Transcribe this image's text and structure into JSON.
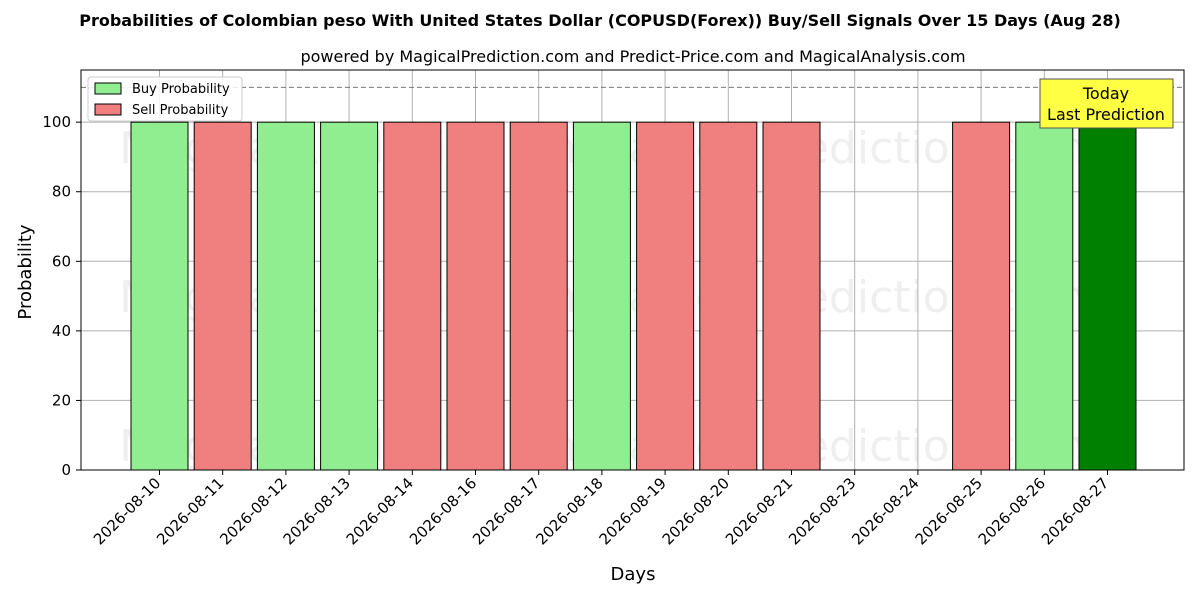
{
  "title": "Probabilities of Colombian peso With United States Dollar (COPUSD(Forex)) Buy/Sell Signals Over 15 Days (Aug 28)",
  "subtitle": "powered by MagicalPrediction.com and Predict-Price.com and MagicalAnalysis.com",
  "watermarks": [
    "MagicalAnalysis.com",
    "MagicalPrediction.com"
  ],
  "today_box": {
    "line1": "Today",
    "line2": "Last Prediction"
  },
  "colors": {
    "buy": "#90ee90",
    "sell": "#f08080",
    "today": "#008000",
    "today_box": "#ffff44"
  },
  "chart_data": {
    "type": "bar",
    "xlabel": "Days",
    "ylabel": "Probability",
    "ylim": [
      0,
      115
    ],
    "yticks": [
      0,
      20,
      40,
      60,
      80,
      100
    ],
    "reference_line": 110,
    "grid": true,
    "legend_placement": "top-left",
    "categories": [
      "2026-08-10",
      "2026-08-11",
      "2026-08-12",
      "2026-08-13",
      "2026-08-14",
      "2026-08-16",
      "2026-08-17",
      "2026-08-18",
      "2026-08-19",
      "2026-08-20",
      "2026-08-21",
      "2026-08-23",
      "2026-08-24",
      "2026-08-25",
      "2026-08-26",
      "2026-08-27"
    ],
    "series": [
      {
        "name": "Buy Probability",
        "values": [
          100,
          null,
          100,
          100,
          null,
          null,
          null,
          100,
          null,
          null,
          null,
          null,
          null,
          null,
          100,
          100
        ]
      },
      {
        "name": "Sell Probability",
        "values": [
          null,
          100,
          null,
          null,
          100,
          100,
          100,
          null,
          100,
          100,
          100,
          null,
          null,
          100,
          null,
          null
        ]
      }
    ],
    "today_index": 15
  }
}
